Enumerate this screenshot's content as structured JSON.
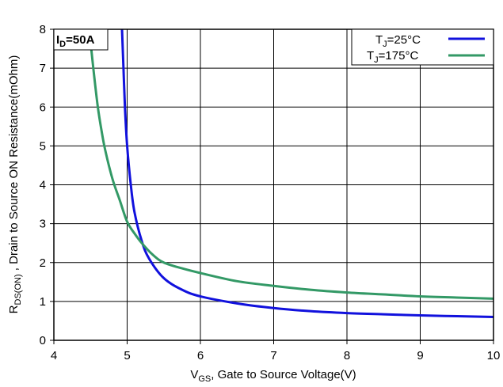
{
  "chart_data": {
    "type": "line",
    "xlabel": {
      "main": "V",
      "sub": "GS",
      "rest": ", Gate to Source Voltage(V)"
    },
    "ylabel": {
      "main": "R",
      "sub": "DS(ON)",
      "rest": " , Drain to Source ON Resistance(mOhm)"
    },
    "annotation": {
      "main": "I",
      "sub": "D",
      "rest": "=50A"
    },
    "xlim": [
      4,
      10
    ],
    "ylim": [
      0,
      8
    ],
    "x_ticks": [
      "4",
      "5",
      "6",
      "7",
      "8",
      "9",
      "10"
    ],
    "y_ticks": [
      "0",
      "1",
      "2",
      "3",
      "4",
      "5",
      "6",
      "7",
      "8"
    ],
    "grid": true,
    "legend_position": "top-right",
    "series": [
      {
        "name": {
          "main": "T",
          "sub": "J",
          "rest": "=25°C"
        },
        "color": "#1111dd",
        "x": [
          4.93,
          4.95,
          4.97,
          5.0,
          5.05,
          5.1,
          5.2,
          5.3,
          5.5,
          5.75,
          6.0,
          6.5,
          7.0,
          7.5,
          8.0,
          8.5,
          9.0,
          9.5,
          10.0
        ],
        "y": [
          8.0,
          7.0,
          6.0,
          5.0,
          4.0,
          3.3,
          2.55,
          2.1,
          1.6,
          1.3,
          1.13,
          0.95,
          0.83,
          0.75,
          0.7,
          0.67,
          0.64,
          0.62,
          0.6
        ]
      },
      {
        "name": {
          "main": "T",
          "sub": "J",
          "rest": "=175°C"
        },
        "color": "#339966",
        "x": [
          4.51,
          4.55,
          4.6,
          4.65,
          4.7,
          4.8,
          4.9,
          5.0,
          5.1,
          5.2,
          5.35,
          5.5,
          5.75,
          6.0,
          6.5,
          7.0,
          7.5,
          8.0,
          8.5,
          9.0,
          9.5,
          10.0
        ],
        "y": [
          7.5,
          6.8,
          6.0,
          5.4,
          4.9,
          4.15,
          3.6,
          3.05,
          2.75,
          2.5,
          2.2,
          2.0,
          1.85,
          1.73,
          1.52,
          1.4,
          1.3,
          1.23,
          1.18,
          1.13,
          1.1,
          1.07
        ]
      }
    ]
  }
}
